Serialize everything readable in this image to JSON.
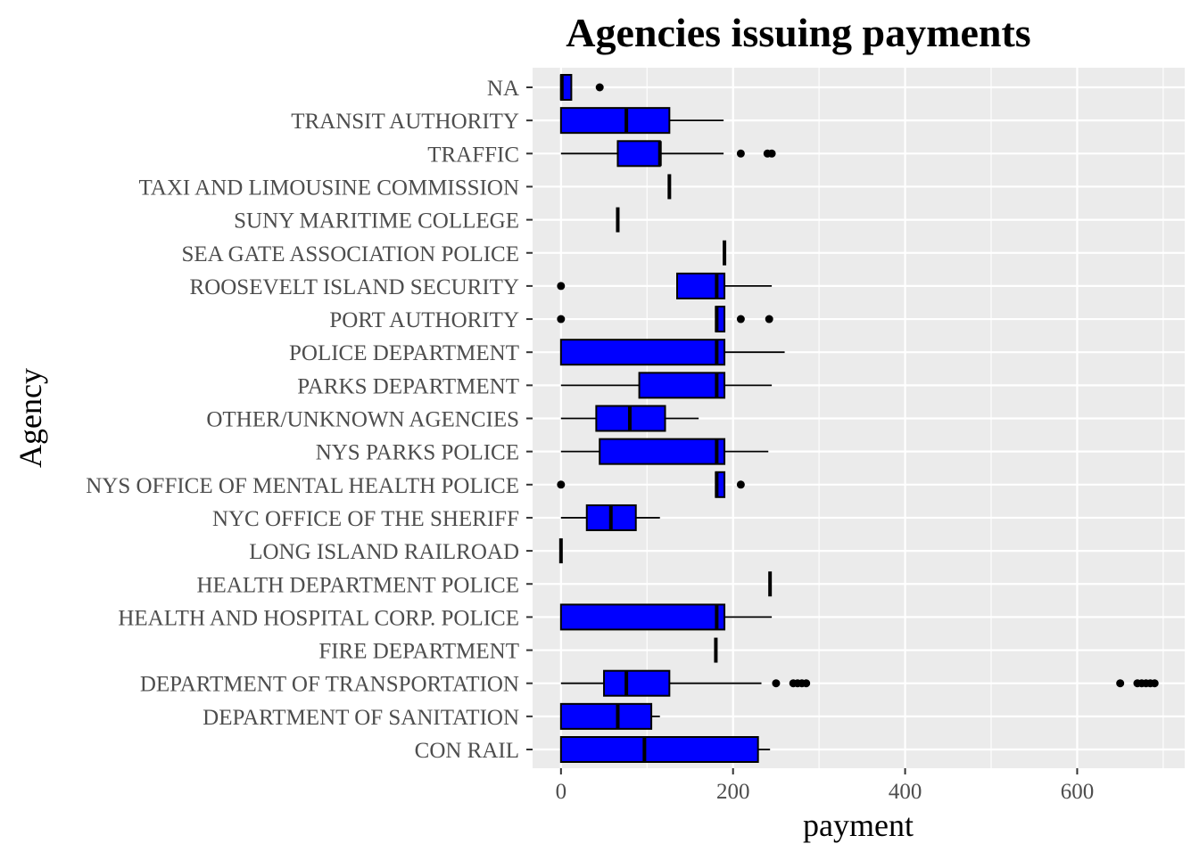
{
  "chart_data": {
    "type": "boxplot",
    "orientation": "horizontal",
    "title": "Agencies issuing payments",
    "xlabel": "payment",
    "ylabel": "Agency",
    "xlim": [
      -33,
      725
    ],
    "xticks": [
      0,
      200,
      400,
      600
    ],
    "grid": true,
    "colors": {
      "box_fill": "#0000FF",
      "box_stroke": "#000000",
      "panel": "#EBEBEB",
      "grid": "#FFFFFF"
    },
    "categories": [
      "NA",
      "TRANSIT AUTHORITY",
      "TRAFFIC",
      "TAXI AND LIMOUSINE COMMISSION",
      "SUNY MARITIME COLLEGE",
      "SEA GATE ASSOCIATION POLICE",
      "ROOSEVELT ISLAND SECURITY",
      "PORT AUTHORITY",
      "POLICE DEPARTMENT",
      "PARKS DEPARTMENT",
      "OTHER/UNKNOWN AGENCIES",
      "NYS PARKS POLICE",
      "NYS OFFICE OF MENTAL HEALTH POLICE",
      "NYC OFFICE OF THE SHERIFF",
      "LONG ISLAND RAILROAD",
      "HEALTH DEPARTMENT POLICE",
      "HEALTH AND HOSPITAL CORP. POLICE",
      "FIRE DEPARTMENT",
      "DEPARTMENT OF TRANSPORTATION",
      "DEPARTMENT OF SANITATION",
      "CON RAIL"
    ],
    "boxes": [
      {
        "min": 0,
        "q1": 0,
        "median": 1,
        "q3": 12,
        "max": 12,
        "outliers": [
          45
        ]
      },
      {
        "min": 0,
        "q1": 0,
        "median": 76,
        "q3": 126,
        "max": 189,
        "outliers": []
      },
      {
        "min": 0,
        "q1": 66,
        "median": 115,
        "q3": 115,
        "max": 189,
        "outliers": [
          209,
          240,
          245
        ]
      },
      {
        "min": 126,
        "q1": 126,
        "median": 126,
        "q3": 126,
        "max": 126,
        "outliers": []
      },
      {
        "min": 66,
        "q1": 66,
        "median": 66,
        "q3": 66,
        "max": 66,
        "outliers": []
      },
      {
        "min": 190,
        "q1": 190,
        "median": 190,
        "q3": 190,
        "max": 190,
        "outliers": []
      },
      {
        "min": 135,
        "q1": 135,
        "median": 181,
        "q3": 190,
        "max": 245,
        "outliers": [
          0
        ]
      },
      {
        "min": 180,
        "q1": 180,
        "median": 181,
        "q3": 190,
        "max": 190,
        "outliers": [
          0,
          209,
          242
        ]
      },
      {
        "min": 0,
        "q1": 0,
        "median": 181,
        "q3": 190,
        "max": 260,
        "outliers": []
      },
      {
        "min": 0,
        "q1": 91,
        "median": 181,
        "q3": 190,
        "max": 245,
        "outliers": []
      },
      {
        "min": 0,
        "q1": 41,
        "median": 80,
        "q3": 121,
        "max": 160,
        "outliers": []
      },
      {
        "min": 0,
        "q1": 45,
        "median": 181,
        "q3": 190,
        "max": 241,
        "outliers": []
      },
      {
        "min": 180,
        "q1": 180,
        "median": 181,
        "q3": 190,
        "max": 190,
        "outliers": [
          0,
          209
        ]
      },
      {
        "min": 0,
        "q1": 30,
        "median": 58,
        "q3": 87,
        "max": 115,
        "outliers": []
      },
      {
        "min": 0,
        "q1": 0,
        "median": 0,
        "q3": 0,
        "max": 0,
        "outliers": []
      },
      {
        "min": 243,
        "q1": 243,
        "median": 243,
        "q3": 243,
        "max": 243,
        "outliers": []
      },
      {
        "min": 0,
        "q1": 0,
        "median": 181,
        "q3": 190,
        "max": 245,
        "outliers": []
      },
      {
        "min": 180,
        "q1": 180,
        "median": 180,
        "q3": 180,
        "max": 180,
        "outliers": []
      },
      {
        "min": 0,
        "q1": 50,
        "median": 76,
        "q3": 126,
        "max": 233,
        "outliers": [
          250,
          270,
          275,
          280,
          285,
          650,
          670,
          675,
          680,
          685,
          690
        ]
      },
      {
        "min": 0,
        "q1": 0,
        "median": 66,
        "q3": 105,
        "max": 115,
        "outliers": []
      },
      {
        "min": 0,
        "q1": 0,
        "median": 97,
        "q3": 229,
        "max": 243,
        "outliers": []
      }
    ]
  }
}
